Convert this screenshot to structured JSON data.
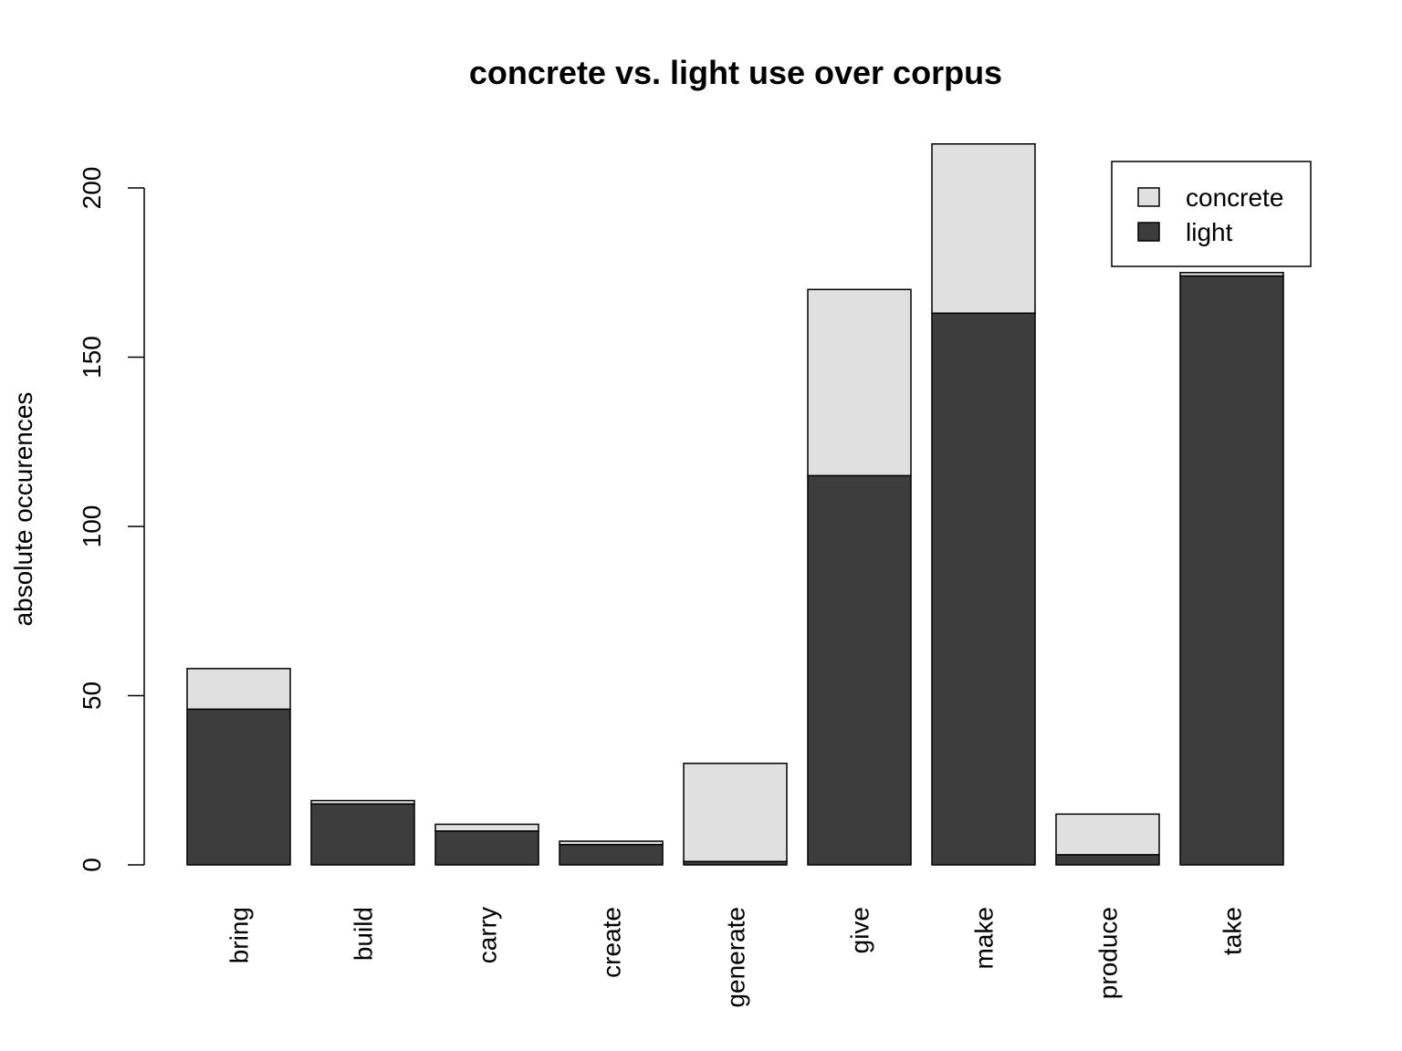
{
  "chart_data": {
    "type": "bar",
    "stacked": true,
    "title": "concrete vs. light use over corpus",
    "xlabel": "",
    "ylabel": "absolute occurences",
    "categories": [
      "bring",
      "build",
      "carry",
      "create",
      "generate",
      "give",
      "make",
      "produce",
      "take"
    ],
    "series": [
      {
        "name": "light",
        "color": "#3d3d3d",
        "values": [
          46,
          18,
          10,
          6,
          1,
          115,
          163,
          3,
          174
        ]
      },
      {
        "name": "concrete",
        "color": "#e0e0e0",
        "values": [
          12,
          1,
          2,
          1,
          29,
          55,
          50,
          12,
          1
        ]
      }
    ],
    "ylim": [
      0,
      200
    ],
    "yticks": [
      0,
      50,
      100,
      150,
      200
    ],
    "grid": false,
    "legend": {
      "position": "top-right",
      "entries": [
        {
          "label": "concrete",
          "color": "#e0e0e0"
        },
        {
          "label": "light",
          "color": "#3d3d3d"
        }
      ]
    }
  }
}
